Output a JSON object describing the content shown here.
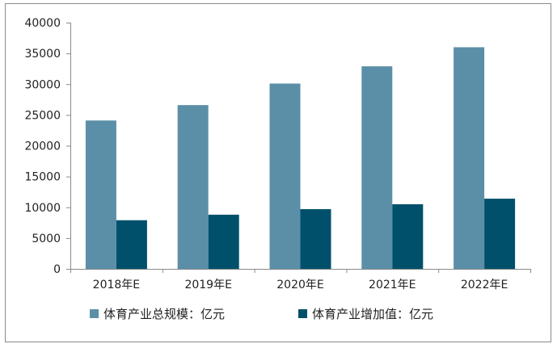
{
  "chart_data": {
    "type": "bar",
    "title": "",
    "xlabel": "",
    "ylabel": "",
    "categories": [
      "2018年E",
      "2019年E",
      "2020年E",
      "2021年E",
      "2022年E"
    ],
    "series": [
      {
        "name": "体育产业总规模：亿元",
        "color": "#5b8fa8",
        "values": [
          24100,
          26600,
          30100,
          32900,
          36000
        ]
      },
      {
        "name": "体育产业增加值：亿元",
        "color": "#00506b",
        "values": [
          7900,
          8800,
          9700,
          10500,
          11400
        ]
      }
    ],
    "ylim": [
      0,
      40000
    ],
    "yticks": [
      0,
      5000,
      10000,
      15000,
      20000,
      25000,
      30000,
      35000,
      40000
    ],
    "grid": false,
    "legend": "bottom"
  }
}
